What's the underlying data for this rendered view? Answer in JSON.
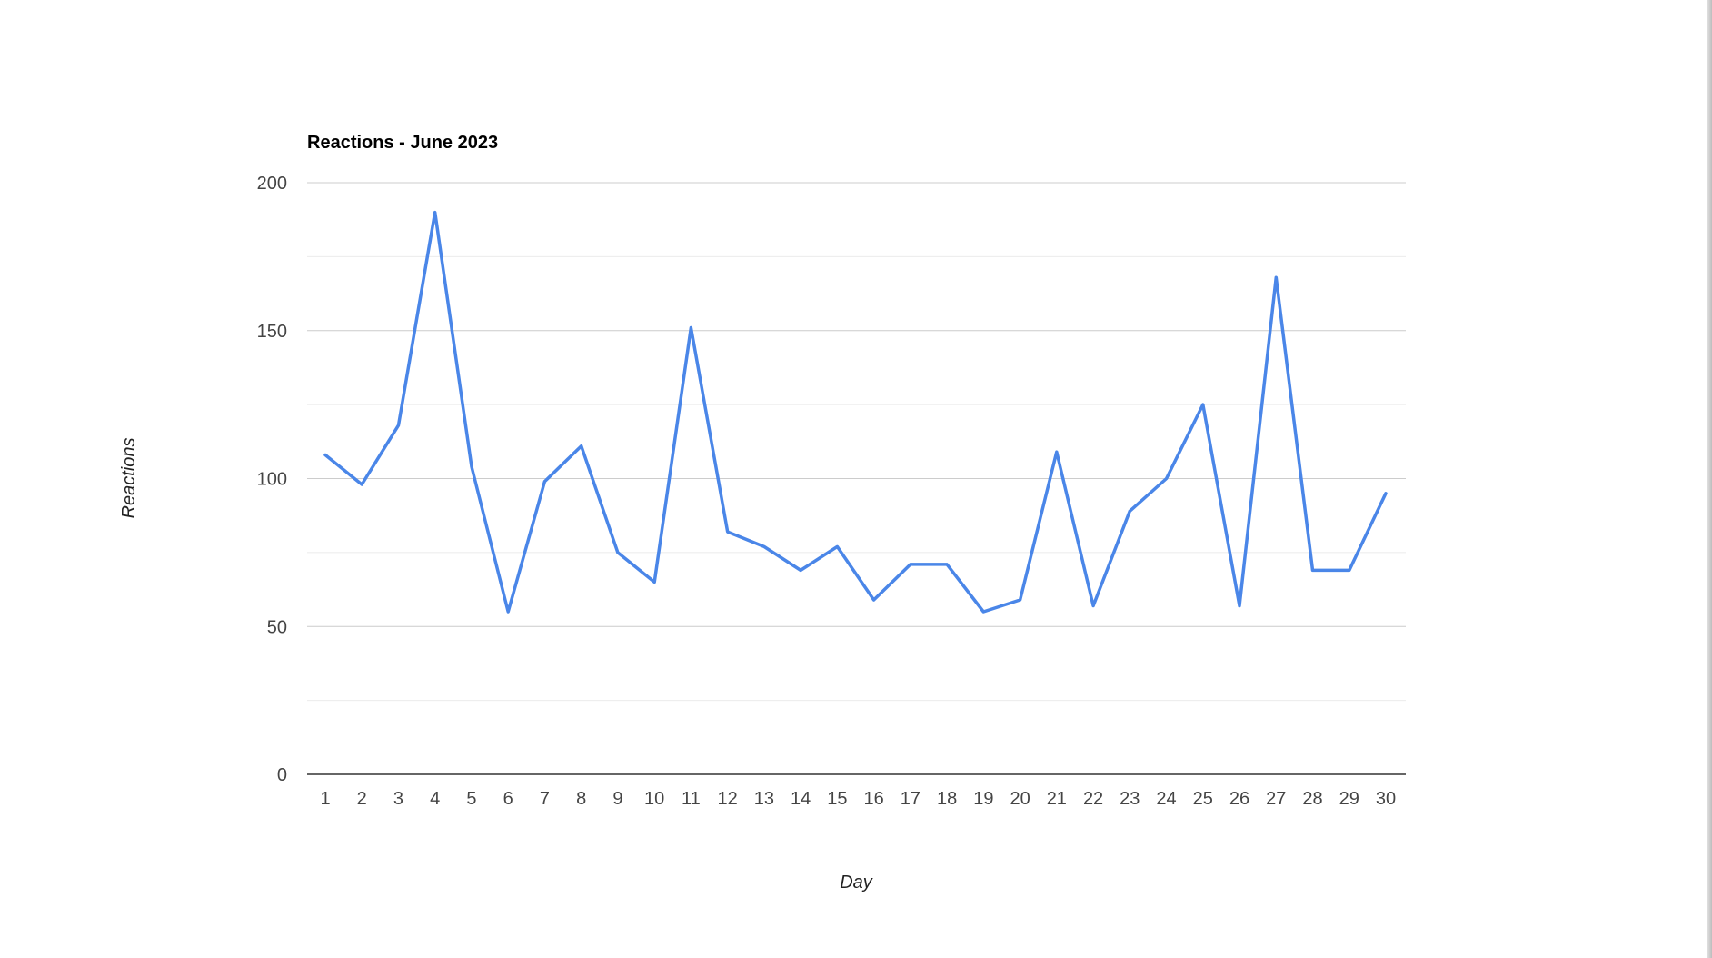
{
  "chart_data": {
    "type": "line",
    "title": "Reactions - June 2023",
    "xlabel": "Day",
    "ylabel": "Reactions",
    "x": [
      1,
      2,
      3,
      4,
      5,
      6,
      7,
      8,
      9,
      10,
      11,
      12,
      13,
      14,
      15,
      16,
      17,
      18,
      19,
      20,
      21,
      22,
      23,
      24,
      25,
      26,
      27,
      28,
      29,
      30
    ],
    "series": [
      {
        "values": [
          108,
          98,
          118,
          190,
          104,
          55,
          99,
          111,
          75,
          65,
          151,
          82,
          77,
          69,
          77,
          59,
          71,
          71,
          55,
          59,
          109,
          57,
          89,
          100,
          125,
          57,
          168,
          69,
          69,
          95
        ]
      }
    ],
    "ylim": [
      0,
      200
    ],
    "yticks": [
      "0",
      "50",
      "100",
      "150",
      "200"
    ],
    "grid": true,
    "line_color": "#4a86e8",
    "gridline_color": "#cccccc",
    "minor_gridline_color": "#ebebeb",
    "baseline_color": "#333333"
  }
}
